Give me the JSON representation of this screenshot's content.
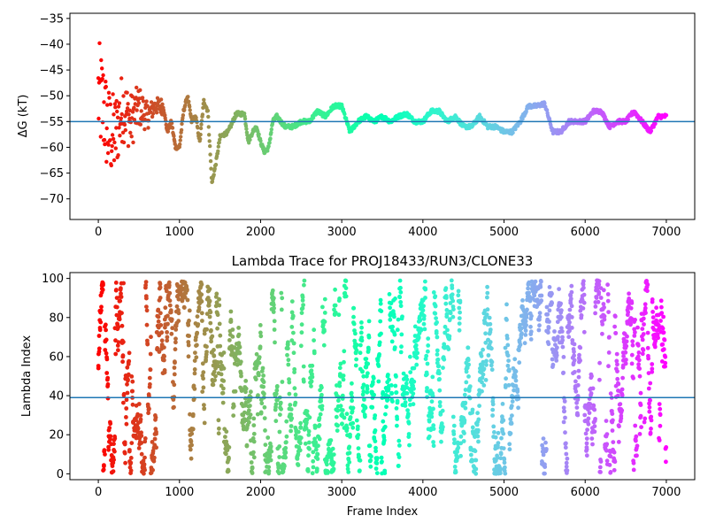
{
  "chart_data": [
    {
      "type": "scatter",
      "title": "",
      "xlabel": "",
      "ylabel": "ΔG (kT)",
      "xlim": [
        -350,
        7350
      ],
      "ylim": [
        -74,
        -34
      ],
      "xticks": [
        0,
        1000,
        2000,
        3000,
        4000,
        5000,
        6000,
        7000
      ],
      "yticks": [
        -70,
        -65,
        -60,
        -55,
        -50,
        -45,
        -40,
        -35
      ],
      "xtick_labels": [
        "0",
        "1000",
        "2000",
        "3000",
        "4000",
        "5000",
        "6000",
        "7000"
      ],
      "ytick_labels": [
        "−70",
        "−65",
        "−60",
        "−55",
        "−50",
        "−45",
        "−40",
        "−35"
      ],
      "colormap": "rainbow (red at frame 0 → violet at frame 7000)",
      "hline": {
        "y": -55,
        "color": "#1f77b4"
      },
      "trend_points": [
        [
          0,
          -50
        ],
        [
          60,
          -52
        ],
        [
          120,
          -57
        ],
        [
          200,
          -58
        ],
        [
          300,
          -52
        ],
        [
          400,
          -55
        ],
        [
          500,
          -52
        ],
        [
          600,
          -54
        ],
        [
          700,
          -52
        ],
        [
          800,
          -52
        ],
        [
          850,
          -57
        ],
        [
          900,
          -55
        ],
        [
          950,
          -60
        ],
        [
          1000,
          -60
        ],
        [
          1050,
          -53
        ],
        [
          1100,
          -50
        ],
        [
          1150,
          -55
        ],
        [
          1200,
          -54
        ],
        [
          1250,
          -59
        ],
        [
          1300,
          -51
        ],
        [
          1350,
          -53
        ],
        [
          1400,
          -67
        ],
        [
          1450,
          -63
        ],
        [
          1500,
          -58
        ],
        [
          1600,
          -57
        ],
        [
          1700,
          -53.5
        ],
        [
          1800,
          -53.5
        ],
        [
          1850,
          -59
        ],
        [
          1900,
          -57
        ],
        [
          1950,
          -56
        ],
        [
          2000,
          -59
        ],
        [
          2050,
          -61
        ],
        [
          2100,
          -60
        ],
        [
          2150,
          -55
        ],
        [
          2200,
          -54
        ],
        [
          2300,
          -56
        ],
        [
          2400,
          -56
        ],
        [
          2500,
          -55
        ],
        [
          2600,
          -55
        ],
        [
          2700,
          -53
        ],
        [
          2800,
          -54
        ],
        [
          2900,
          -52
        ],
        [
          3000,
          -52
        ],
        [
          3100,
          -57
        ],
        [
          3200,
          -55
        ],
        [
          3300,
          -54
        ],
        [
          3400,
          -55
        ],
        [
          3500,
          -54
        ],
        [
          3600,
          -55
        ],
        [
          3700,
          -54
        ],
        [
          3800,
          -53.5
        ],
        [
          3900,
          -55
        ],
        [
          4000,
          -55
        ],
        [
          4100,
          -53
        ],
        [
          4200,
          -53
        ],
        [
          4300,
          -55
        ],
        [
          4400,
          -54
        ],
        [
          4500,
          -56
        ],
        [
          4600,
          -56
        ],
        [
          4700,
          -54
        ],
        [
          4800,
          -56
        ],
        [
          4900,
          -56
        ],
        [
          5000,
          -57
        ],
        [
          5100,
          -57
        ],
        [
          5200,
          -55
        ],
        [
          5300,
          -52
        ],
        [
          5400,
          -52
        ],
        [
          5500,
          -51.5
        ],
        [
          5600,
          -57
        ],
        [
          5700,
          -57
        ],
        [
          5800,
          -55
        ],
        [
          5900,
          -55
        ],
        [
          6000,
          -55
        ],
        [
          6100,
          -53
        ],
        [
          6200,
          -53
        ],
        [
          6300,
          -56
        ],
        [
          6400,
          -55
        ],
        [
          6500,
          -55
        ],
        [
          6600,
          -53
        ],
        [
          6700,
          -55
        ],
        [
          6800,
          -57
        ],
        [
          6900,
          -54
        ],
        [
          7000,
          -54
        ]
      ]
    },
    {
      "type": "scatter",
      "title": "Lambda Trace for PROJ18433/RUN3/CLONE33",
      "xlabel": "Frame Index",
      "ylabel": "Lambda Index",
      "xlim": [
        -350,
        7350
      ],
      "ylim": [
        -3,
        103
      ],
      "xticks": [
        0,
        1000,
        2000,
        3000,
        4000,
        5000,
        6000,
        7000
      ],
      "yticks": [
        0,
        20,
        40,
        60,
        80,
        100
      ],
      "xtick_labels": [
        "0",
        "1000",
        "2000",
        "3000",
        "4000",
        "5000",
        "6000",
        "7000"
      ],
      "ytick_labels": [
        "0",
        "20",
        "40",
        "60",
        "80",
        "100"
      ],
      "colormap": "rainbow (red at frame 0 → violet at frame 7000)",
      "hline": {
        "y": 39,
        "color": "#1f77b4"
      },
      "point_count": 2600,
      "y_range": [
        0,
        99
      ]
    }
  ]
}
